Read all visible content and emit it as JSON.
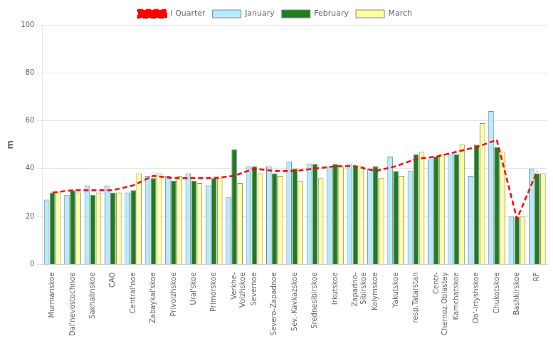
{
  "chart_data": {
    "type": "bar",
    "ylabel": "m",
    "categories": [
      "Murmanskoe",
      "Dal'nevostochnoe",
      "Sakhalinskoe",
      "CAO",
      "Central'noe",
      "Zabaykal'skoe",
      "Privolzhskoe",
      "Ural'skoe",
      "Primorskoe",
      "Verkhe-\nVolzhskoe",
      "Severnoe",
      "Severo-Zapadnoe",
      "Sev.-Kavkazskoe",
      "Srednesibirskoe",
      "Irkutskoe",
      "Zapadno-\nSibirskoe",
      "Kolymskoe",
      "Yakutskoe",
      "resp.Tatarstan",
      "Centr-\nChernoz.Oblastey",
      "Kamchatskoe",
      "Ob'-Irtyshskoe",
      "Chukotskoe",
      "Bashkirskoe",
      "RF"
    ],
    "series": [
      {
        "name": "January",
        "type": "bar",
        "color": "#b3ecff",
        "values": [
          27,
          29,
          33,
          33,
          30,
          37,
          37,
          38,
          33,
          28,
          41,
          41,
          43,
          42,
          41,
          42,
          40,
          45,
          39,
          44,
          46,
          37,
          64,
          20,
          40
        ]
      },
      {
        "name": "February",
        "type": "bar",
        "color": "#1e7d1e",
        "values": [
          30,
          31,
          29,
          30,
          31,
          36,
          35,
          35,
          36,
          48,
          41,
          38,
          40,
          42,
          42,
          41,
          41,
          39,
          46,
          45,
          46,
          50,
          49,
          20,
          38
        ]
      },
      {
        "name": "March",
        "type": "bar",
        "color": "#ffffa0",
        "values": [
          30,
          30,
          30,
          30,
          38,
          38,
          37,
          34,
          36,
          34,
          38,
          37,
          35,
          36,
          41,
          41,
          36,
          37,
          47,
          46,
          50,
          59,
          47,
          20,
          38
        ]
      },
      {
        "name": "I Quarter",
        "type": "line",
        "color": "#ff0000",
        "line_style": "dashed",
        "marker": "none",
        "values": [
          30,
          31,
          31,
          31,
          33,
          37,
          36,
          36,
          36,
          37,
          40,
          39,
          39,
          40,
          41,
          41,
          39,
          41,
          44,
          45,
          47,
          49,
          52,
          19,
          39
        ]
      }
    ],
    "ylim": [
      0,
      100
    ],
    "yticks": [
      0,
      20,
      40,
      60,
      80,
      100
    ],
    "grid": true,
    "legend": "top"
  }
}
